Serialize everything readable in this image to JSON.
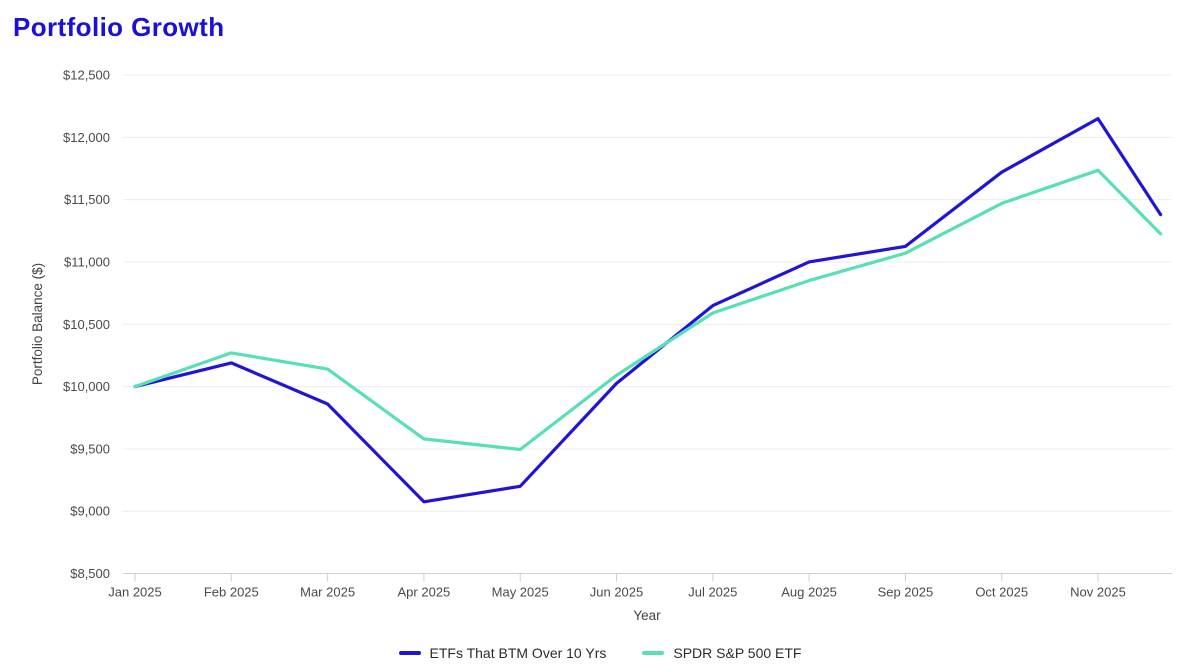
{
  "title": "Portfolio Growth",
  "colors": {
    "title_text": "#1b0fd8",
    "axis_text": "#4a4a4a",
    "axis_title_text": "#424242",
    "legend_text": "#2b2b2b",
    "gridline": "#ececec",
    "axis_line": "#d0d0d0",
    "tick_mark": "#c7cde9",
    "background": "#ffffff"
  },
  "chart_data": {
    "type": "line",
    "title": "Portfolio Growth",
    "xlabel": "Year",
    "ylabel": "Portfolio Balance ($)",
    "ylim": [
      8500,
      12500
    ],
    "y_tick_values": [
      8500,
      9000,
      9500,
      10000,
      10500,
      11000,
      11500,
      12000,
      12500
    ],
    "y_tick_labels": [
      "$8,500",
      "$9,000",
      "$9,500",
      "$10,000",
      "$10,500",
      "$11,000",
      "$11,500",
      "$12,000",
      "$12,500"
    ],
    "x_tick_labels": [
      "Jan 2025",
      "Feb 2025",
      "Mar 2025",
      "Apr 2025",
      "May 2025",
      "Jun 2025",
      "Jul 2025",
      "Aug 2025",
      "Sep 2025",
      "Oct 2025",
      "Nov 2025"
    ],
    "x": [
      0,
      1,
      2,
      3,
      4,
      5,
      6,
      7,
      8,
      9,
      10,
      10.65
    ],
    "grid": "horizontal",
    "legend_position": "bottom",
    "series": [
      {
        "name": "ETFs That BTM Over 10 Yrs",
        "color": "#2213d8",
        "values": [
          10000,
          10190,
          9860,
          9075,
          9200,
          10025,
          10650,
          11000,
          11125,
          11720,
          12150,
          11380
        ]
      },
      {
        "name": "SPDR S&P 500 ETF",
        "color": "#57dfb5",
        "values": [
          10000,
          10270,
          10140,
          9580,
          9495,
          10090,
          10590,
          10850,
          11070,
          11470,
          11735,
          11225
        ]
      }
    ]
  }
}
